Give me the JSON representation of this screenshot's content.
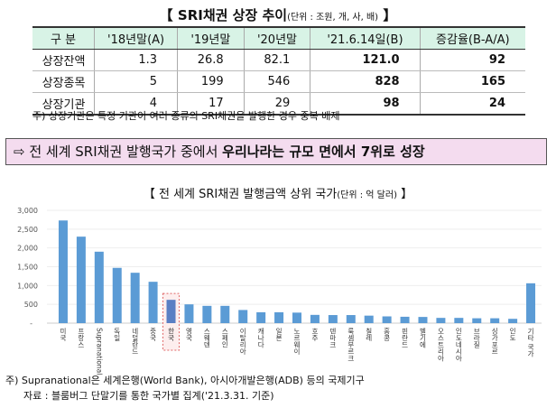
{
  "table": {
    "title": "【 SRI채권 상장 추이",
    "unit": "(단위 : 조원, 개, 사, 배)",
    "title_end": " 】",
    "headers": [
      "구 분",
      "'18년말(A)",
      "'19년말",
      "'20년말",
      "'21.6.14일(B)",
      "증감율(B-A/A)"
    ],
    "rows": [
      [
        "상장잔액",
        "1.3",
        "26.8",
        "82.1",
        "121.0",
        "92"
      ],
      [
        "상장종목",
        "5",
        "199",
        "546",
        "828",
        "165"
      ],
      [
        "상장기관",
        "4",
        "17",
        "29",
        "98",
        "24"
      ]
    ],
    "note": "주) 상장기관은 특정 기관이 여러 종류의 SRI채권을 발행한 경우 중복 배제"
  },
  "highlight_box": {
    "arrow": "⇨",
    "text": " 전 세계 SRI채권 발행국가 중에서 ",
    "bold": "우리나라는 규모 면에서 7위로 성장"
  },
  "chart_data": {
    "type": "bar",
    "title": "【 전 세계 SRI채권 발행금액 상위 국가",
    "unit": "(단위 : 억 달러)",
    "title_end": " 】",
    "categories": [
      "미국",
      "프랑스",
      "Supranational",
      "독일",
      "네덜란드",
      "중국",
      "한국",
      "영국",
      "스웨덴",
      "스페인",
      "이탈리아",
      "캐나다",
      "일본",
      "노르웨이",
      "호주",
      "덴마크",
      "룩셈부르크",
      "칠레",
      "홍콩",
      "핀란드",
      "벨기에",
      "오스트리아",
      "인도네시아",
      "브라질",
      "싱가포르",
      "인도",
      "기타 국가"
    ],
    "values": [
      2730,
      2300,
      1900,
      1470,
      1340,
      1100,
      620,
      500,
      460,
      460,
      350,
      290,
      290,
      280,
      220,
      215,
      215,
      200,
      180,
      170,
      165,
      140,
      140,
      130,
      130,
      115,
      1060
    ],
    "yticks": [
      "-",
      "500",
      "1,000",
      "1,500",
      "2,000",
      "2,500",
      "3,000"
    ],
    "ylim": [
      0,
      3000
    ],
    "grid": true,
    "bar_color": "#5b9bd5",
    "highlighted_category": "한국",
    "highlight_color": "#e06666"
  },
  "footnotes": [
    "주) Supranational은 세계은행(World Bank), 아시아개발은행(ADB) 등의 국제기구",
    "자료 : 블룸버그 단말기를 통한 국가별 집계('21.3.31. 기준)"
  ]
}
